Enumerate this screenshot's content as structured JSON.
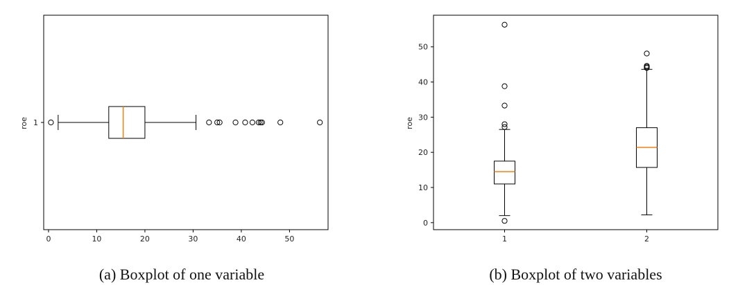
{
  "chart_data": [
    {
      "type": "boxplot",
      "orientation": "horizontal",
      "caption": "(a) Boxplot of one variable",
      "ylabel": "roe",
      "categories": [
        "1"
      ],
      "xlim": [
        -1,
        58
      ],
      "xticks": [
        0,
        10,
        20,
        30,
        40,
        50
      ],
      "boxes": [
        {
          "category": "1",
          "whisker_low": 2.0,
          "q1": 12.5,
          "median": 15.5,
          "q3": 20.0,
          "whisker_high": 30.6,
          "outliers": [
            0.5,
            33.3,
            35.0,
            35.5,
            38.8,
            40.8,
            42.3,
            43.6,
            44.0,
            44.3,
            48.1,
            56.3
          ]
        }
      ]
    },
    {
      "type": "boxplot",
      "orientation": "vertical",
      "caption": "(b) Boxplot of two variables",
      "ylabel": "roe",
      "categories": [
        "1",
        "2"
      ],
      "ylim": [
        -2,
        59
      ],
      "yticks": [
        0,
        10,
        20,
        30,
        40,
        50
      ],
      "boxes": [
        {
          "category": "1",
          "whisker_low": 2.0,
          "q1": 11.0,
          "median": 14.5,
          "q3": 17.5,
          "whisker_high": 26.5,
          "outliers": [
            0.5,
            27.2,
            28.0,
            33.3,
            38.8,
            56.3
          ]
        },
        {
          "category": "2",
          "whisker_low": 2.2,
          "q1": 15.7,
          "median": 21.4,
          "q3": 27.0,
          "whisker_high": 43.6,
          "outliers": [
            44.0,
            44.3,
            44.6,
            48.1
          ]
        }
      ]
    }
  ]
}
